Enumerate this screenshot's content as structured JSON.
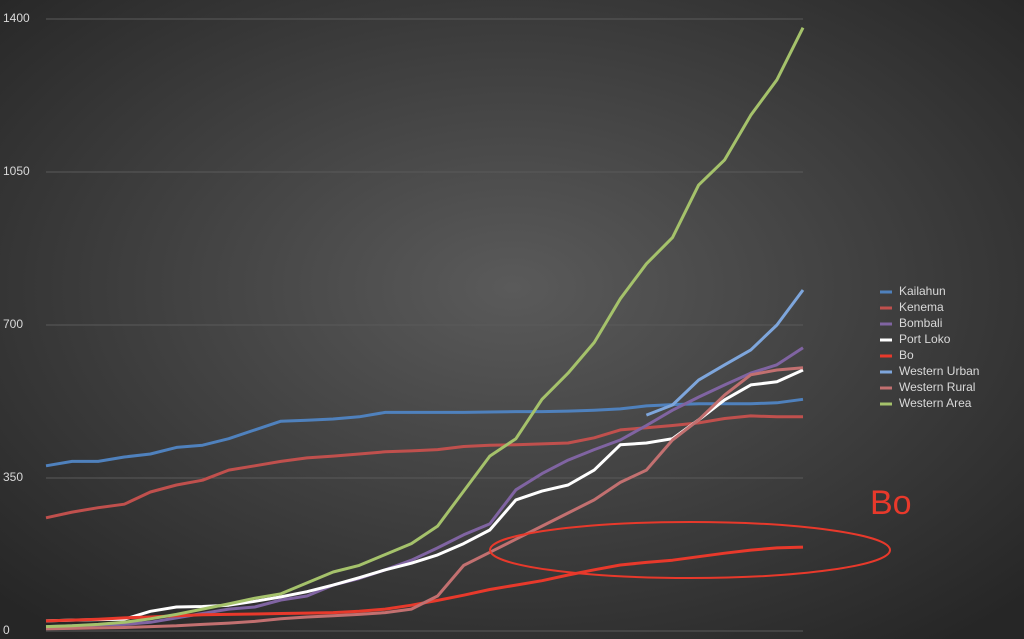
{
  "chart_data": {
    "type": "line",
    "categories": [
      null,
      null,
      null,
      null,
      null,
      null,
      null,
      null,
      null,
      null,
      null,
      null,
      null,
      null,
      null,
      null,
      null,
      null,
      null,
      null,
      null,
      null,
      null,
      null,
      null,
      null,
      null,
      null,
      null,
      null
    ],
    "ylim": [
      0,
      1400
    ],
    "yticks": [
      0,
      350,
      700,
      1050,
      1400
    ],
    "grid": true,
    "legend": "right",
    "annotation": "Bo",
    "series": [
      {
        "name": "Kailahun",
        "color": "#4f81bd",
        "values": [
          378,
          388,
          388,
          398,
          405,
          420,
          425,
          440,
          460,
          480,
          482,
          485,
          490,
          500,
          500,
          500,
          500,
          501,
          502,
          502,
          503,
          505,
          508,
          515,
          518,
          520,
          520,
          520,
          522,
          530
        ]
      },
      {
        "name": "Kenema",
        "color": "#c0504d",
        "values": [
          259,
          272,
          282,
          290,
          318,
          334,
          345,
          368,
          378,
          388,
          396,
          400,
          405,
          410,
          412,
          415,
          422,
          425,
          426,
          428,
          430,
          442,
          460,
          465,
          470,
          476,
          486,
          492,
          490,
          490
        ]
      },
      {
        "name": "Bombali",
        "color": "#8064a2",
        "values": [
          10,
          12,
          14,
          15,
          20,
          30,
          40,
          50,
          55,
          71,
          80,
          105,
          120,
          140,
          162,
          190,
          220,
          245,
          323,
          360,
          391,
          415,
          437,
          470,
          505,
          535,
          563,
          590,
          609,
          648
        ]
      },
      {
        "name": "Port Loko",
        "color": "#ffffff",
        "values": [
          23,
          25,
          26,
          27,
          45,
          55,
          56,
          59,
          68,
          78,
          90,
          105,
          122,
          140,
          155,
          174,
          200,
          231,
          300,
          320,
          334,
          368,
          426,
          430,
          440,
          483,
          529,
          563,
          570,
          597
        ]
      },
      {
        "name": "Bo",
        "color": "#e8392b",
        "values": [
          23,
          25,
          27,
          30,
          32,
          35,
          37,
          38,
          39,
          40,
          41,
          42,
          45,
          50,
          59,
          70,
          82,
          95,
          105,
          115,
          128,
          140,
          151,
          157,
          162,
          170,
          178,
          185,
          190,
          192
        ]
      },
      {
        "name": "Western Urban",
        "color": "#7ea6dc",
        "values": [
          null,
          null,
          null,
          null,
          null,
          null,
          null,
          null,
          null,
          null,
          null,
          null,
          null,
          null,
          null,
          null,
          null,
          null,
          null,
          null,
          null,
          null,
          null,
          494,
          517,
          574,
          609,
          643,
          700,
          780
        ]
      },
      {
        "name": "Western Rural",
        "color": "#c27070",
        "values": [
          5,
          6,
          7,
          8,
          10,
          12,
          15,
          18,
          22,
          28,
          32,
          35,
          38,
          42,
          50,
          80,
          150,
          180,
          210,
          240,
          270,
          300,
          340,
          368,
          437,
          483,
          540,
          586,
          597,
          602
        ]
      },
      {
        "name": "Western Area",
        "color": "#a5c26b",
        "values": [
          10,
          12,
          15,
          20,
          28,
          38,
          50,
          62,
          75,
          85,
          110,
          135,
          150,
          175,
          200,
          240,
          320,
          400,
          440,
          530,
          590,
          660,
          760,
          840,
          900,
          1020,
          1078,
          1180,
          1261,
          1380
        ]
      }
    ]
  }
}
